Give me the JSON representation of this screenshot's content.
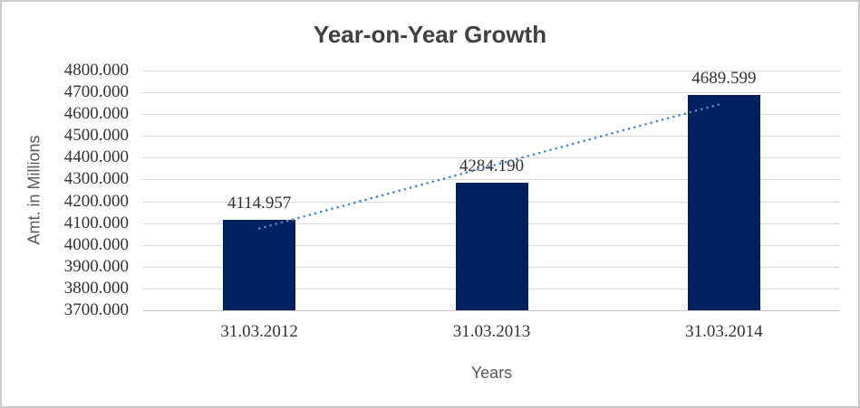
{
  "chart_data": {
    "type": "bar",
    "title": "Year-on-Year Growth",
    "categories": [
      "31.03.2012",
      "31.03.2013",
      "31.03.2014"
    ],
    "values": [
      4114.957,
      4284.19,
      4689.599
    ],
    "data_labels": [
      "4114.957",
      "4284.190",
      "4689.599"
    ],
    "value_decimals": 3,
    "xlabel": "Years",
    "ylabel": "Amt. in Millions",
    "ylim": [
      3700,
      4800
    ],
    "ytick_step": 100,
    "ytick_decimals": 3,
    "grid": true,
    "legend": false,
    "trendline": {
      "type": "linear",
      "style": "dotted",
      "color": "#4e86c8"
    },
    "colors": {
      "bar": "#002060",
      "gridline": "#d9d9d9",
      "axis_line": "#c6c6c6",
      "title_text": "#404040",
      "tick_text": "#333333",
      "axis_title_text": "#595959",
      "window_border": "#cbcbcb",
      "background": "#ffffff"
    }
  }
}
